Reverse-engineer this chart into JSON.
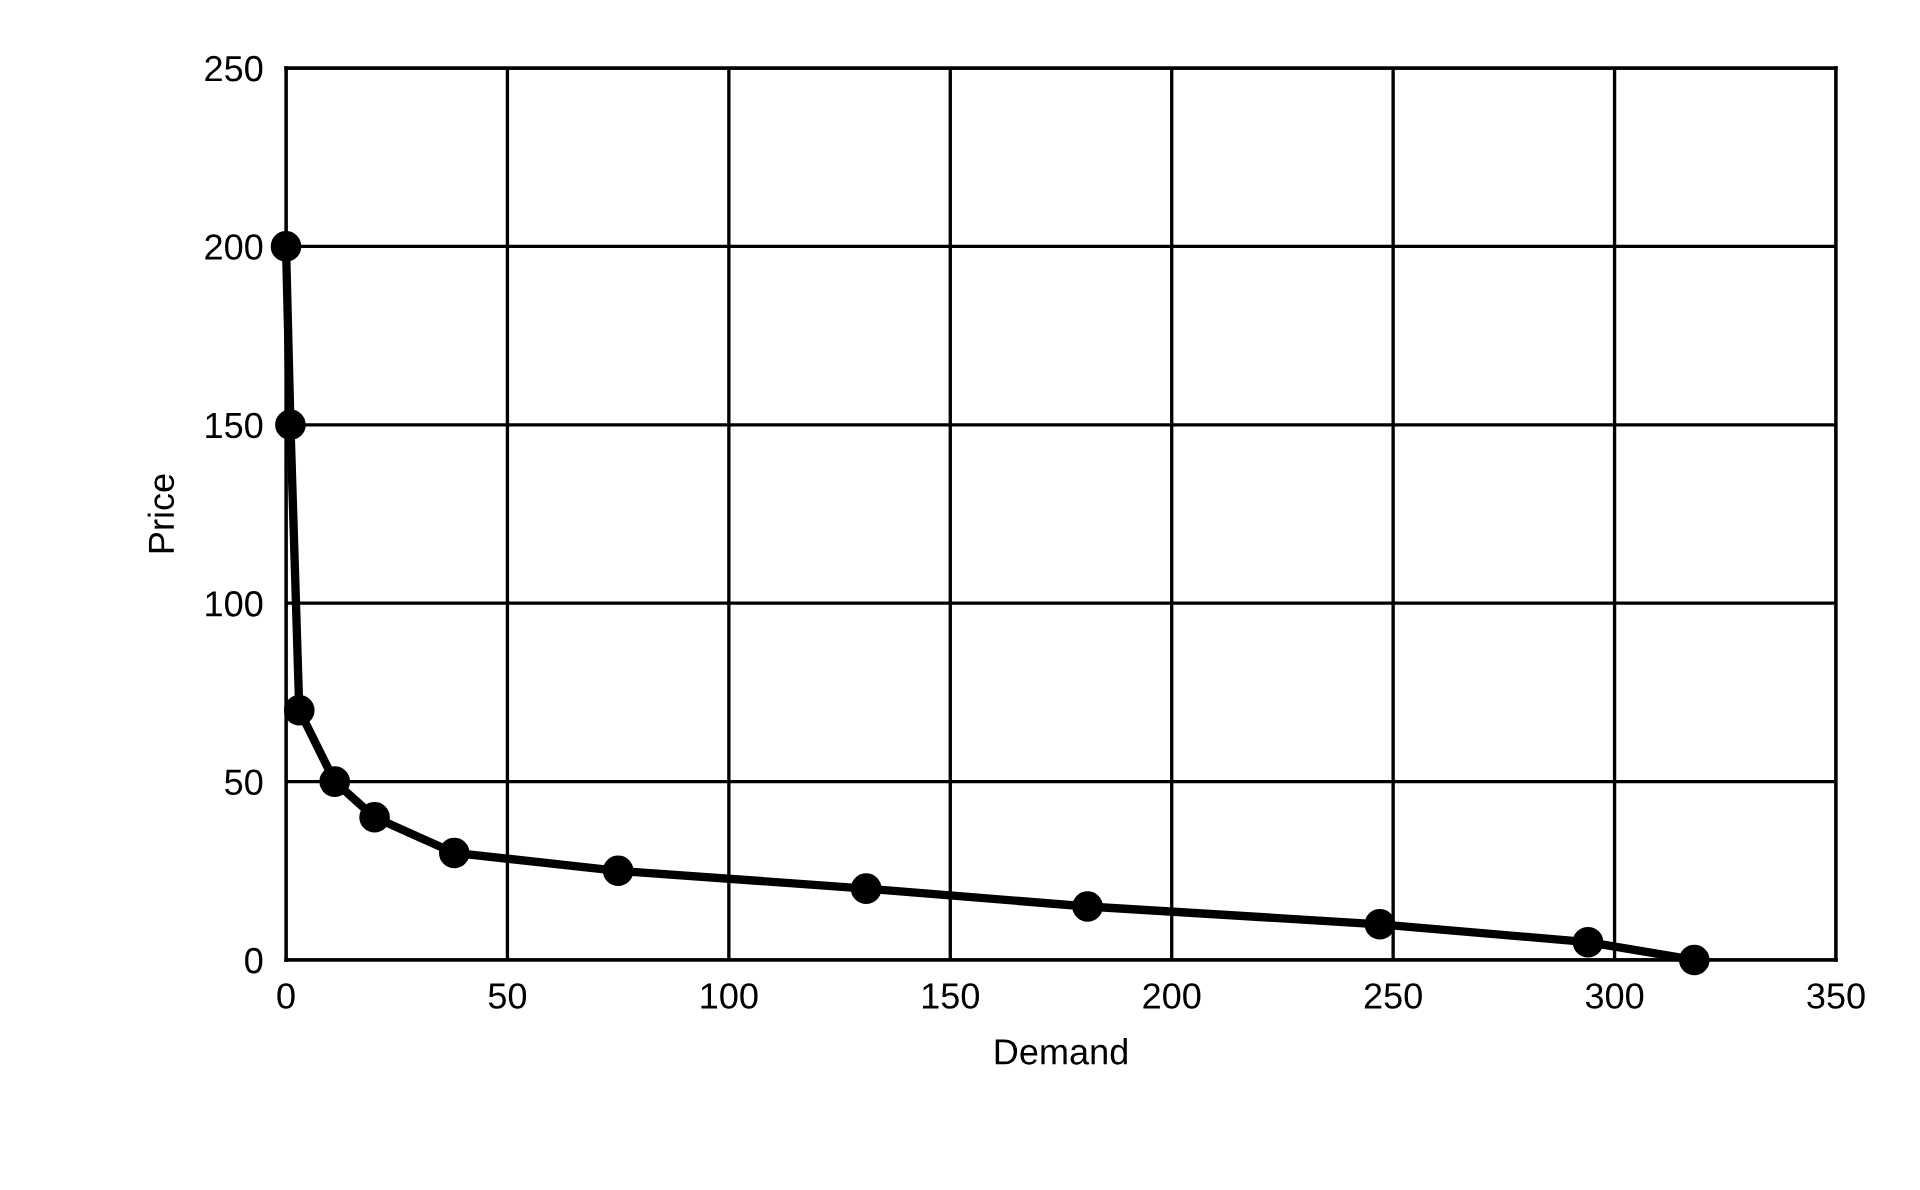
{
  "chart_data": {
    "type": "line",
    "xlabel": "Demand",
    "ylabel": "Price",
    "x": [
      0,
      1,
      3,
      11,
      20,
      38,
      75,
      131,
      181,
      247,
      294,
      318
    ],
    "series": [
      {
        "color": "#000000",
        "values": [
          200,
          150,
          70,
          50,
          40,
          30,
          25,
          20,
          15,
          10,
          5,
          0
        ]
      }
    ],
    "xlim": [
      0,
      350
    ],
    "xticks": [
      0,
      50,
      100,
      150,
      200,
      250,
      300,
      350
    ],
    "ylim": [
      0,
      250
    ],
    "yticks": [
      0,
      50,
      100,
      150,
      200,
      250
    ],
    "grid": true,
    "marker": "circle",
    "line_style": "solid"
  }
}
